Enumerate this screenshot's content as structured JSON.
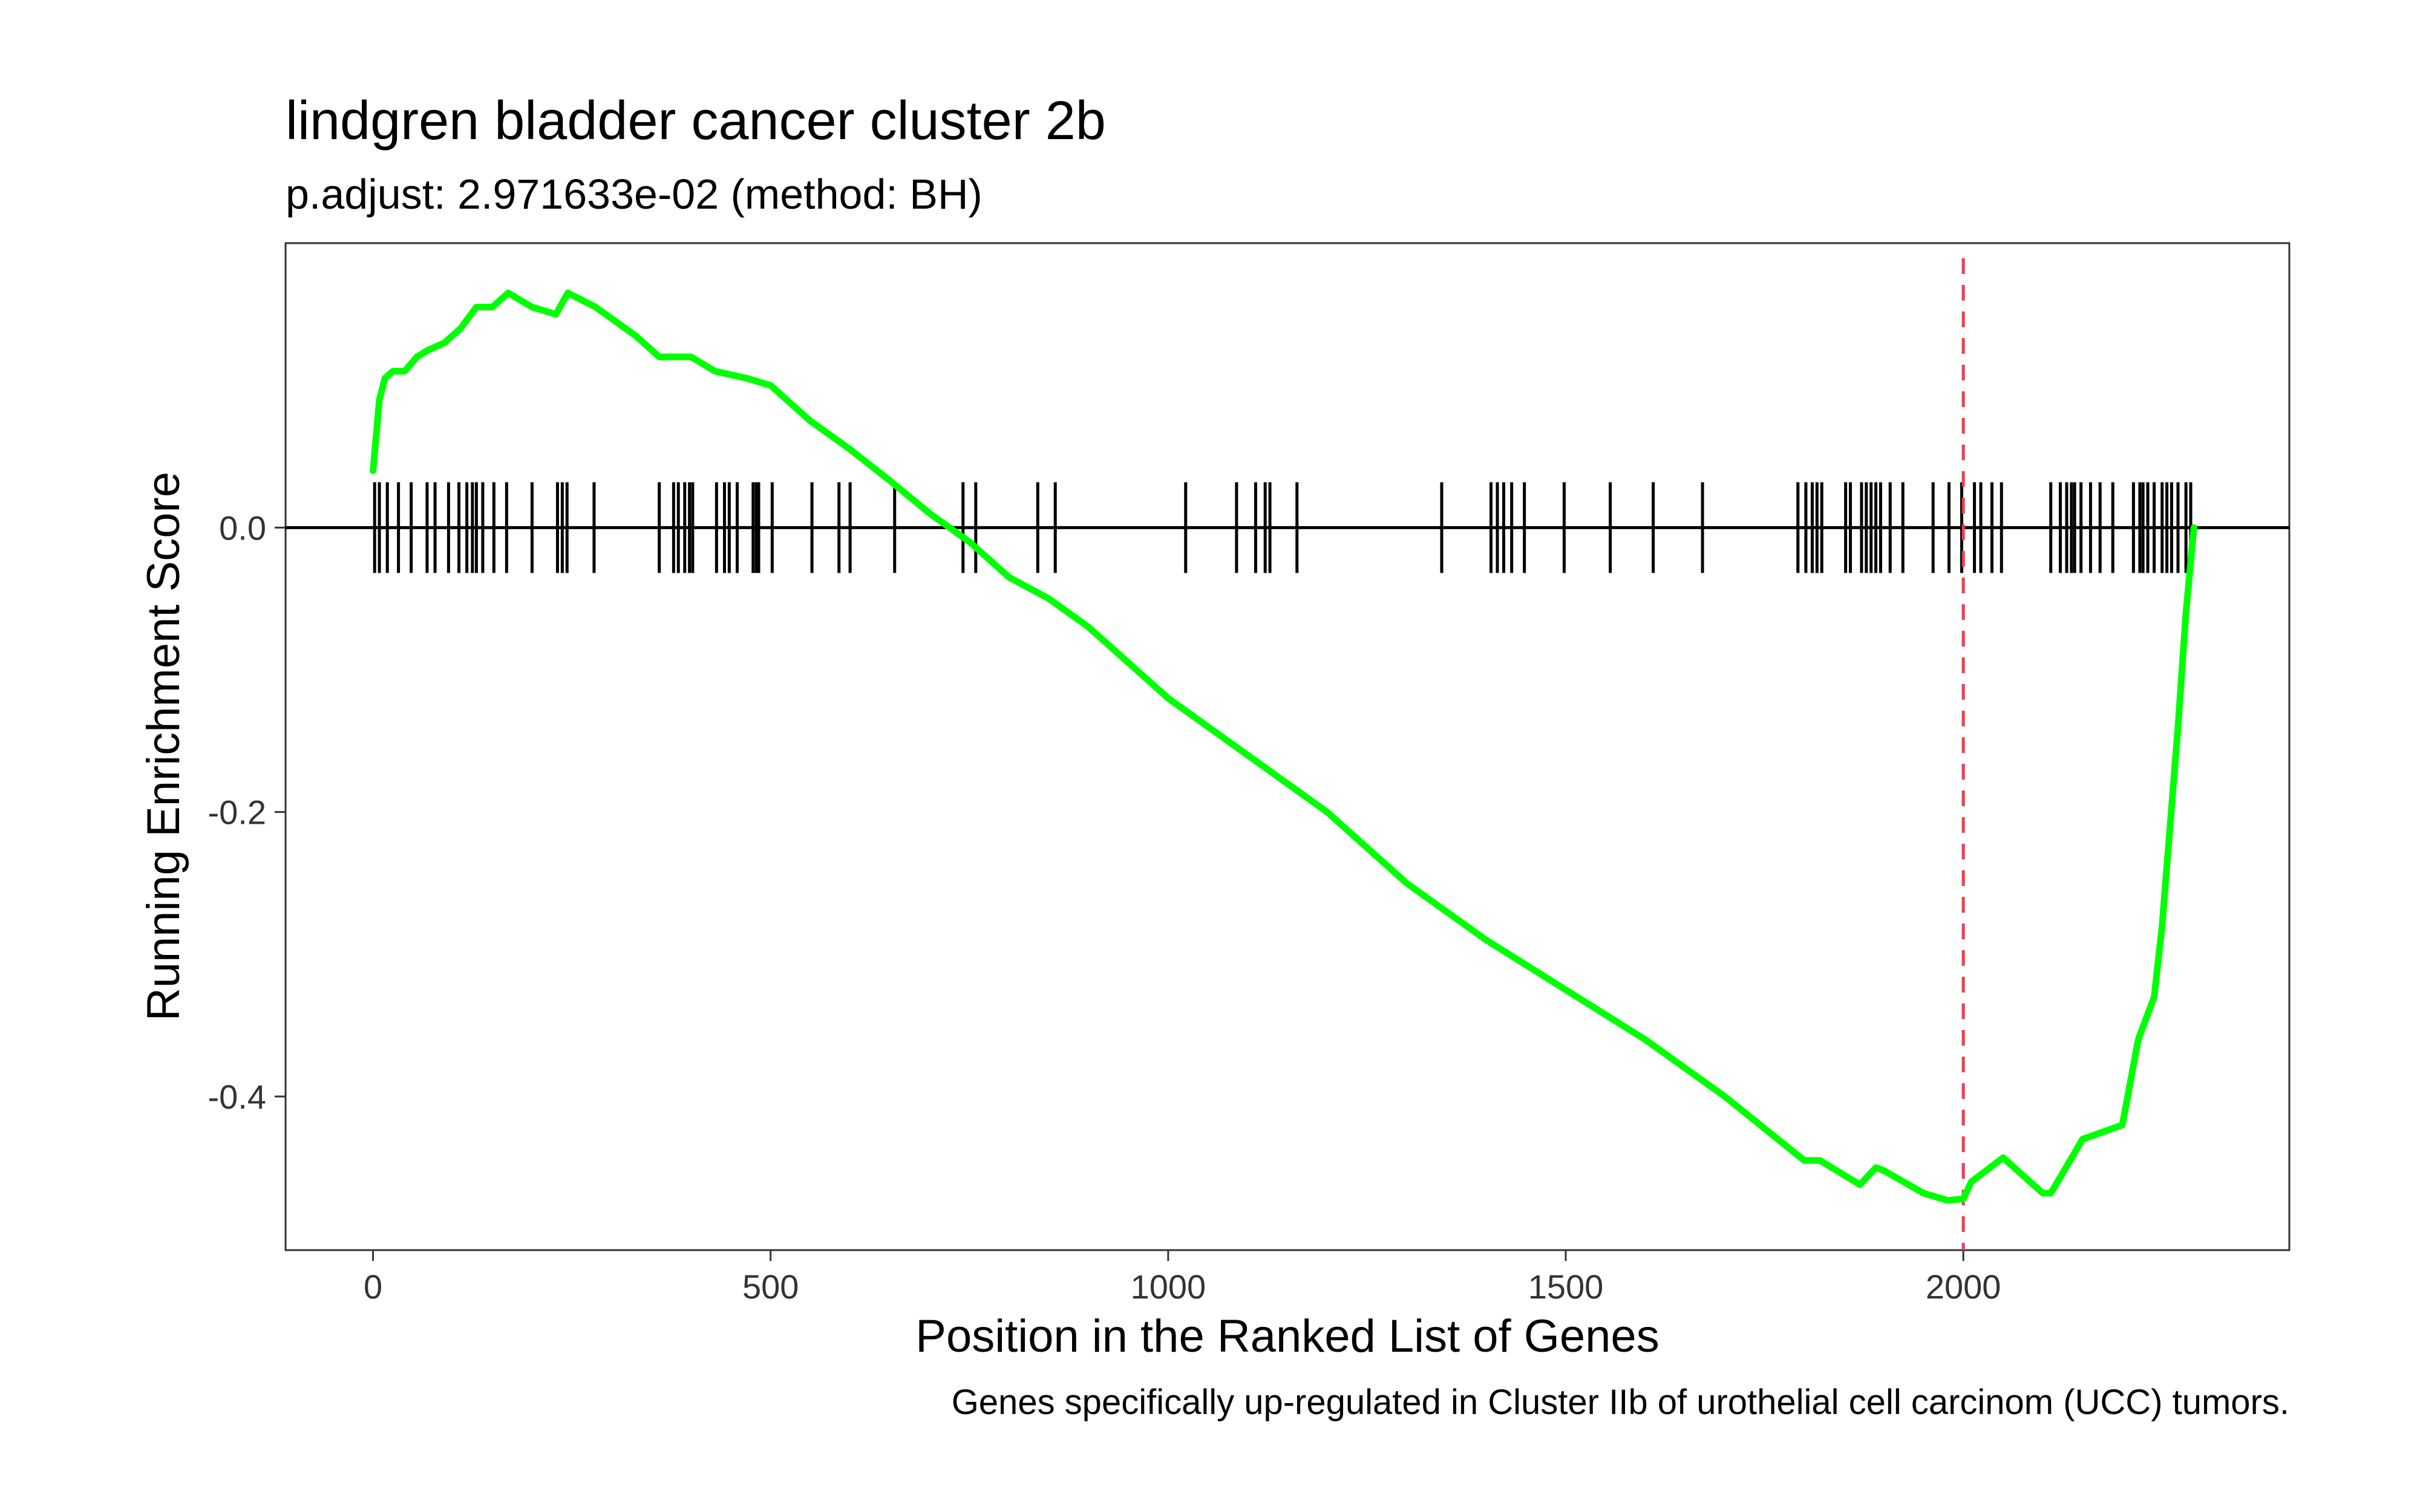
{
  "chart_data": {
    "type": "line",
    "title": "lindgren bladder cancer cluster 2b",
    "subtitle": "p.adjust: 2.971633e-02 (method: BH)",
    "xlabel": "Position in the Ranked List of Genes",
    "ylabel": "Running Enrichment Score",
    "caption": "Genes specifically up-regulated in Cluster IIb of urothelial cell carcinom (UCC) tumors.",
    "xlim": [
      -110,
      2410
    ],
    "ylim": [
      -0.508,
      0.2
    ],
    "x_ticks": [
      0,
      500,
      1000,
      1500,
      2000
    ],
    "x_tick_labels": [
      "0",
      "500",
      "1000",
      "1500",
      "2000"
    ],
    "y_ticks": [
      0.0,
      -0.2,
      -0.4
    ],
    "y_tick_labels": [
      "0.0",
      "-0.2",
      "-0.4"
    ],
    "grid": false,
    "zero_line": 0.0,
    "vline_x": 2000,
    "colors": {
      "series": "#00ff00",
      "vline": "#e8414f",
      "hits": "#000000",
      "frame": "#333333"
    },
    "series": [
      {
        "x": [
          0,
          8,
          15,
          25,
          40,
          55,
          70,
          90,
          110,
          130,
          150,
          170,
          200,
          230,
          245,
          280,
          330,
          360,
          400,
          430,
          470,
          500,
          550,
          600,
          650,
          700,
          750,
          800,
          850,
          900,
          1000,
          1100,
          1200,
          1300,
          1400,
          1500,
          1600,
          1700,
          1800,
          1820,
          1870,
          1890,
          1900,
          1950,
          1980,
          2000,
          2010,
          2050,
          2100,
          2110,
          2150,
          2200,
          2220,
          2240,
          2250,
          2270,
          2280,
          2290
        ],
        "y": [
          0.04,
          0.09,
          0.105,
          0.11,
          0.11,
          0.12,
          0.125,
          0.13,
          0.14,
          0.155,
          0.155,
          0.165,
          0.155,
          0.15,
          0.165,
          0.155,
          0.135,
          0.12,
          0.12,
          0.11,
          0.105,
          0.1,
          0.075,
          0.055,
          0.033,
          0.01,
          -0.01,
          -0.035,
          -0.05,
          -0.07,
          -0.12,
          -0.16,
          -0.2,
          -0.25,
          -0.29,
          -0.325,
          -0.36,
          -0.4,
          -0.445,
          -0.445,
          -0.462,
          -0.45,
          -0.452,
          -0.468,
          -0.473,
          -0.472,
          -0.46,
          -0.443,
          -0.468,
          -0.468,
          -0.43,
          -0.42,
          -0.36,
          -0.33,
          -0.28,
          -0.14,
          -0.06,
          0.0
        ]
      }
    ],
    "hits": [
      2,
      8,
      18,
      32,
      48,
      68,
      78,
      95,
      108,
      118,
      125,
      130,
      138,
      152,
      168,
      200,
      232,
      238,
      244,
      278,
      360,
      378,
      384,
      392,
      398,
      402,
      432,
      442,
      448,
      458,
      478,
      482,
      485,
      502,
      552,
      586,
      600,
      656,
      742,
      758,
      836,
      858,
      1022,
      1086,
      1110,
      1122,
      1128,
      1162,
      1344,
      1406,
      1414,
      1422,
      1432,
      1448,
      1498,
      1556,
      1610,
      1672,
      1792,
      1802,
      1810,
      1816,
      1822,
      1852,
      1858,
      1872,
      1878,
      1884,
      1890,
      1896,
      1908,
      1924,
      1962,
      1982,
      1998,
      2014,
      2022,
      2036,
      2048,
      2110,
      2122,
      2130,
      2136,
      2140,
      2148,
      2160,
      2172,
      2188,
      2214,
      2222,
      2226,
      2232,
      2240,
      2250,
      2256,
      2262,
      2270,
      2280,
      2286
    ]
  }
}
